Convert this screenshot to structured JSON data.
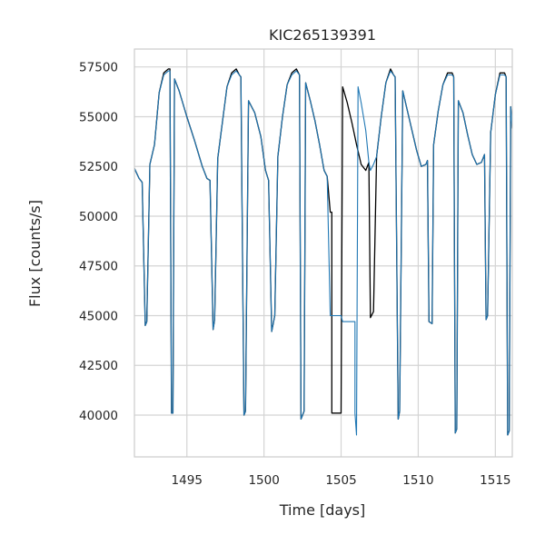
{
  "chart_data": {
    "type": "line",
    "title": "KIC265139391",
    "xlabel": "Time [days]",
    "ylabel": "Flux [counts/s]",
    "xlim": [
      1491.6,
      1516.1
    ],
    "ylim": [
      37900,
      58400
    ],
    "xticks": [
      1495,
      1500,
      1505,
      1510,
      1515
    ],
    "yticks": [
      40000,
      42500,
      45000,
      47500,
      50000,
      52500,
      55000,
      57500
    ],
    "xtick_labels": [
      "1495",
      "1500",
      "1505",
      "1510",
      "1515"
    ],
    "ytick_labels": [
      "40000",
      "42500",
      "45000",
      "47500",
      "50000",
      "52500",
      "55000",
      "57500"
    ],
    "grid": true,
    "series": [
      {
        "color": "#000000",
        "values_xy": [
          [
            1491.6,
            52400
          ],
          [
            1491.9,
            51900
          ],
          [
            1492.1,
            51700
          ],
          [
            1492.3,
            44500
          ],
          [
            1492.4,
            44700
          ],
          [
            1492.6,
            52600
          ],
          [
            1492.9,
            53600
          ],
          [
            1493.2,
            56200
          ],
          [
            1493.5,
            57200
          ],
          [
            1493.8,
            57400
          ],
          [
            1493.9,
            57400
          ],
          [
            1494.0,
            40100
          ],
          [
            1494.1,
            40100
          ],
          [
            1494.2,
            56900
          ],
          [
            1494.5,
            56300
          ],
          [
            1495.0,
            55000
          ],
          [
            1495.5,
            53800
          ],
          [
            1496.0,
            52500
          ],
          [
            1496.3,
            51900
          ],
          [
            1496.5,
            51800
          ],
          [
            1496.7,
            44300
          ],
          [
            1496.8,
            44800
          ],
          [
            1497.0,
            52900
          ],
          [
            1497.3,
            54700
          ],
          [
            1497.6,
            56500
          ],
          [
            1497.9,
            57200
          ],
          [
            1498.2,
            57400
          ],
          [
            1498.4,
            57100
          ],
          [
            1498.5,
            57000
          ],
          [
            1498.7,
            40000
          ],
          [
            1498.8,
            40200
          ],
          [
            1499.0,
            55800
          ],
          [
            1499.4,
            55200
          ],
          [
            1499.8,
            54000
          ],
          [
            1500.1,
            52300
          ],
          [
            1500.3,
            51800
          ],
          [
            1500.5,
            44200
          ],
          [
            1500.7,
            45000
          ],
          [
            1500.9,
            53000
          ],
          [
            1501.2,
            55000
          ],
          [
            1501.5,
            56600
          ],
          [
            1501.8,
            57200
          ],
          [
            1502.1,
            57400
          ],
          [
            1502.3,
            57100
          ],
          [
            1502.4,
            39800
          ],
          [
            1502.6,
            40200
          ],
          [
            1502.7,
            56700
          ],
          [
            1503.0,
            55800
          ],
          [
            1503.3,
            54800
          ],
          [
            1503.6,
            53600
          ],
          [
            1503.9,
            52300
          ],
          [
            1504.1,
            52000
          ],
          [
            1504.3,
            50200
          ],
          [
            1504.4,
            50200
          ],
          [
            1504.4,
            40100
          ],
          [
            1505.0,
            40100
          ],
          [
            1505.1,
            56500
          ],
          [
            1505.4,
            55700
          ],
          [
            1505.7,
            54700
          ],
          [
            1506.0,
            53600
          ],
          [
            1506.3,
            52600
          ],
          [
            1506.6,
            52300
          ],
          [
            1506.8,
            52700
          ],
          [
            1506.9,
            44900
          ],
          [
            1507.1,
            45200
          ],
          [
            1507.3,
            53000
          ],
          [
            1507.6,
            55000
          ],
          [
            1507.9,
            56700
          ],
          [
            1508.2,
            57400
          ],
          [
            1508.4,
            57100
          ],
          [
            1508.5,
            57000
          ],
          [
            1508.7,
            39800
          ],
          [
            1508.8,
            40200
          ],
          [
            1509.0,
            56300
          ],
          [
            1509.3,
            55300
          ],
          [
            1509.6,
            54300
          ],
          [
            1509.9,
            53300
          ],
          [
            1510.2,
            52500
          ],
          [
            1510.5,
            52600
          ],
          [
            1510.6,
            52800
          ],
          [
            1510.7,
            44700
          ],
          [
            1510.9,
            44600
          ],
          [
            1511.0,
            53600
          ],
          [
            1511.3,
            55300
          ],
          [
            1511.6,
            56600
          ],
          [
            1511.9,
            57200
          ],
          [
            1512.2,
            57200
          ],
          [
            1512.3,
            57000
          ],
          [
            1512.4,
            39100
          ],
          [
            1512.5,
            39300
          ],
          [
            1512.6,
            55800
          ],
          [
            1512.9,
            55200
          ],
          [
            1513.2,
            54100
          ],
          [
            1513.5,
            53100
          ],
          [
            1513.8,
            52600
          ],
          [
            1514.1,
            52700
          ],
          [
            1514.3,
            53100
          ],
          [
            1514.4,
            44800
          ],
          [
            1514.5,
            45000
          ],
          [
            1514.7,
            54200
          ],
          [
            1515.0,
            56100
          ],
          [
            1515.3,
            57200
          ],
          [
            1515.6,
            57200
          ],
          [
            1515.7,
            57000
          ],
          [
            1515.8,
            39000
          ],
          [
            1515.9,
            39200
          ],
          [
            1516.0,
            55500
          ],
          [
            1516.1,
            54400
          ]
        ]
      },
      {
        "color": "#1f77b4",
        "values_xy": [
          [
            1491.6,
            52400
          ],
          [
            1491.9,
            51900
          ],
          [
            1492.1,
            51700
          ],
          [
            1492.3,
            44500
          ],
          [
            1492.4,
            44700
          ],
          [
            1492.6,
            52600
          ],
          [
            1492.9,
            53600
          ],
          [
            1493.2,
            56200
          ],
          [
            1493.5,
            57100
          ],
          [
            1493.8,
            57300
          ],
          [
            1493.9,
            57300
          ],
          [
            1494.0,
            40100
          ],
          [
            1494.1,
            40100
          ],
          [
            1494.2,
            56900
          ],
          [
            1494.5,
            56300
          ],
          [
            1495.0,
            55000
          ],
          [
            1495.5,
            53800
          ],
          [
            1496.0,
            52500
          ],
          [
            1496.3,
            51900
          ],
          [
            1496.5,
            51800
          ],
          [
            1496.7,
            44300
          ],
          [
            1496.8,
            44800
          ],
          [
            1497.0,
            52900
          ],
          [
            1497.3,
            54700
          ],
          [
            1497.6,
            56500
          ],
          [
            1497.9,
            57100
          ],
          [
            1498.2,
            57300
          ],
          [
            1498.4,
            57100
          ],
          [
            1498.5,
            57000
          ],
          [
            1498.7,
            40000
          ],
          [
            1498.8,
            40200
          ],
          [
            1499.0,
            55800
          ],
          [
            1499.4,
            55200
          ],
          [
            1499.8,
            54000
          ],
          [
            1500.1,
            52300
          ],
          [
            1500.3,
            51800
          ],
          [
            1500.5,
            44200
          ],
          [
            1500.7,
            45000
          ],
          [
            1500.9,
            53000
          ],
          [
            1501.2,
            55000
          ],
          [
            1501.5,
            56600
          ],
          [
            1501.8,
            57100
          ],
          [
            1502.1,
            57300
          ],
          [
            1502.3,
            57100
          ],
          [
            1502.4,
            39800
          ],
          [
            1502.6,
            40200
          ],
          [
            1502.7,
            56700
          ],
          [
            1503.0,
            55800
          ],
          [
            1503.3,
            54800
          ],
          [
            1503.6,
            53600
          ],
          [
            1503.9,
            52300
          ],
          [
            1504.1,
            52000
          ],
          [
            1504.3,
            45000
          ],
          [
            1504.4,
            45000
          ],
          [
            1505.0,
            45000
          ],
          [
            1505.1,
            44700
          ],
          [
            1505.9,
            44700
          ],
          [
            1505.9,
            40100
          ],
          [
            1506.0,
            39000
          ],
          [
            1506.1,
            56500
          ],
          [
            1506.3,
            55700
          ],
          [
            1506.6,
            54300
          ],
          [
            1506.8,
            52700
          ],
          [
            1506.9,
            52300
          ],
          [
            1507.1,
            52600
          ],
          [
            1507.3,
            53000
          ],
          [
            1507.6,
            55000
          ],
          [
            1507.9,
            56700
          ],
          [
            1508.2,
            57300
          ],
          [
            1508.4,
            57100
          ],
          [
            1508.5,
            57000
          ],
          [
            1508.7,
            39800
          ],
          [
            1508.8,
            40200
          ],
          [
            1509.0,
            56300
          ],
          [
            1509.3,
            55300
          ],
          [
            1509.6,
            54300
          ],
          [
            1509.9,
            53300
          ],
          [
            1510.2,
            52500
          ],
          [
            1510.5,
            52600
          ],
          [
            1510.6,
            52800
          ],
          [
            1510.7,
            44700
          ],
          [
            1510.9,
            44600
          ],
          [
            1511.0,
            53600
          ],
          [
            1511.3,
            55300
          ],
          [
            1511.6,
            56600
          ],
          [
            1511.9,
            57100
          ],
          [
            1512.2,
            57100
          ],
          [
            1512.3,
            57000
          ],
          [
            1512.4,
            39100
          ],
          [
            1512.5,
            39300
          ],
          [
            1512.6,
            55800
          ],
          [
            1512.9,
            55200
          ],
          [
            1513.2,
            54100
          ],
          [
            1513.5,
            53100
          ],
          [
            1513.8,
            52600
          ],
          [
            1514.1,
            52700
          ],
          [
            1514.3,
            53100
          ],
          [
            1514.4,
            44800
          ],
          [
            1514.5,
            45000
          ],
          [
            1514.7,
            54200
          ],
          [
            1515.0,
            56100
          ],
          [
            1515.3,
            57100
          ],
          [
            1515.6,
            57100
          ],
          [
            1515.7,
            57000
          ],
          [
            1515.8,
            39000
          ],
          [
            1515.9,
            39200
          ],
          [
            1516.0,
            55500
          ],
          [
            1516.1,
            54400
          ]
        ]
      }
    ]
  }
}
